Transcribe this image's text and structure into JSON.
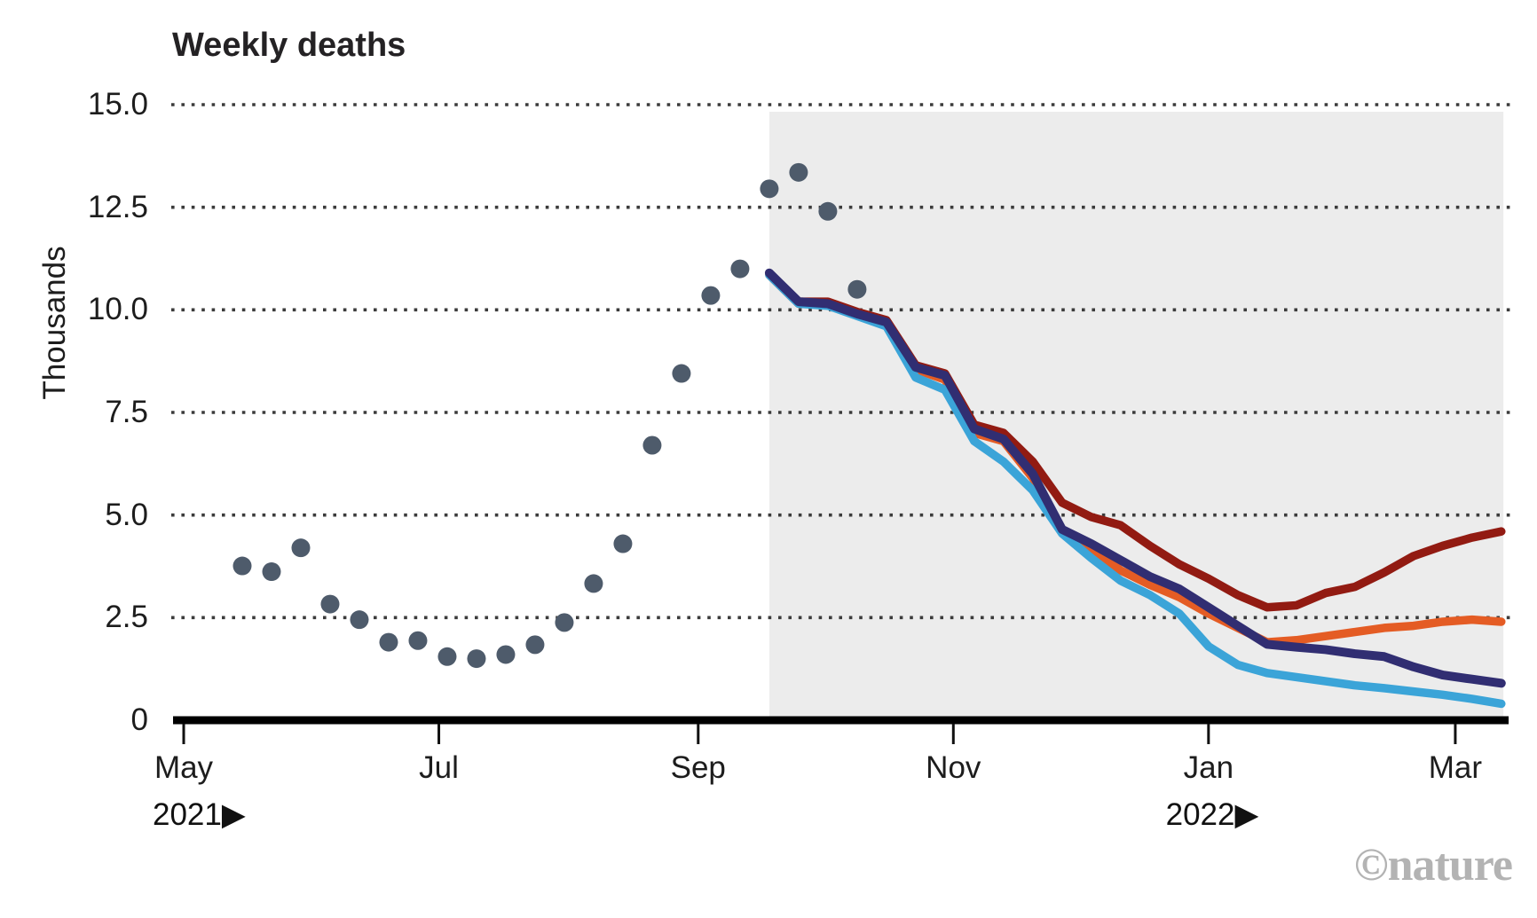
{
  "chart": {
    "title": "Weekly deaths",
    "ylabel": "Thousands",
    "credit": "©nature",
    "x_axis": {
      "month_ticks": [
        {
          "label": "May",
          "day": 0
        },
        {
          "label": "Jul",
          "day": 61
        },
        {
          "label": "Sep",
          "day": 123
        },
        {
          "label": "Nov",
          "day": 184
        },
        {
          "label": "Jan",
          "day": 245
        },
        {
          "label": "Mar",
          "day": 304
        }
      ],
      "year_labels": {
        "left": "2021▶",
        "right": "2022▶"
      }
    },
    "y_axis": {
      "ticks": [
        {
          "label": "15.0",
          "value": 15
        },
        {
          "label": "12.5",
          "value": 12.5
        },
        {
          "label": "10.0",
          "value": 10
        },
        {
          "label": "7.5",
          "value": 7.5
        },
        {
          "label": "5.0",
          "value": 5
        },
        {
          "label": "2.5",
          "value": 2.5
        },
        {
          "label": "0",
          "value": 0
        }
      ]
    },
    "colors": {
      "observed_dot": "#4e5b6b",
      "dark_red": "#921b12",
      "orange": "#e45c24",
      "light_blue": "#3ba4d8",
      "navy": "#312e72",
      "projection_band": "#ececec",
      "gridline": "#3b3b3b",
      "axis": "#000000",
      "credit": "#b3b3b3"
    }
  },
  "chart_data": {
    "type": "mixed-scatter-line",
    "title": "Weekly deaths",
    "ylabel": "Thousands",
    "ylim": [
      0,
      15
    ],
    "gridline_values": [
      2.5,
      5,
      7.5,
      10,
      12.5,
      15
    ],
    "x_unit": "days since 2021-05-01",
    "observed": {
      "name": "observed-weekly-deaths",
      "color": "#4e5b6b",
      "dates": [
        "2021-05-15",
        "2021-05-22",
        "2021-05-29",
        "2021-06-05",
        "2021-06-12",
        "2021-06-19",
        "2021-06-26",
        "2021-07-03",
        "2021-07-10",
        "2021-07-17",
        "2021-07-24",
        "2021-07-31",
        "2021-08-07",
        "2021-08-14",
        "2021-08-21",
        "2021-08-28",
        "2021-09-04",
        "2021-09-11",
        "2021-09-18",
        "2021-09-25",
        "2021-10-02",
        "2021-10-09"
      ],
      "days": [
        14,
        21,
        28,
        35,
        42,
        49,
        56,
        63,
        70,
        77,
        84,
        91,
        98,
        105,
        112,
        119,
        126,
        133,
        140,
        147,
        154,
        161
      ],
      "values": [
        3.76,
        3.62,
        4.2,
        2.83,
        2.45,
        1.9,
        1.94,
        1.55,
        1.5,
        1.6,
        1.84,
        2.38,
        3.33,
        4.3,
        6.7,
        8.45,
        10.35,
        11.0,
        12.95,
        13.35,
        12.4,
        10.5
      ]
    },
    "projections": {
      "region_start_day": 140,
      "region_end_day": 315.5,
      "dates": [
        "2021-09-18",
        "2021-09-25",
        "2021-10-02",
        "2021-10-09",
        "2021-10-16",
        "2021-10-23",
        "2021-10-30",
        "2021-11-06",
        "2021-11-13",
        "2021-11-20",
        "2021-11-27",
        "2021-12-04",
        "2021-12-11",
        "2021-12-18",
        "2021-12-25",
        "2022-01-01",
        "2022-01-08",
        "2022-01-15",
        "2022-01-22",
        "2022-01-29",
        "2022-02-05",
        "2022-02-12",
        "2022-02-19",
        "2022-02-26",
        "2022-03-05",
        "2022-03-12"
      ],
      "days": [
        140,
        147,
        154,
        161,
        168,
        175,
        182,
        189,
        196,
        203,
        210,
        217,
        224,
        231,
        238,
        245,
        252,
        259,
        266,
        273,
        280,
        287,
        294,
        301,
        308,
        315
      ],
      "series": [
        {
          "id": "dark-red",
          "color": "#921b12",
          "width": 9.5,
          "values": [
            10.9,
            10.2,
            10.2,
            9.95,
            9.75,
            8.65,
            8.45,
            7.2,
            7.0,
            6.3,
            5.3,
            4.95,
            4.75,
            4.25,
            3.8,
            3.45,
            3.05,
            2.75,
            2.8,
            3.1,
            3.25,
            3.6,
            4.0,
            4.25,
            4.45,
            4.6
          ]
        },
        {
          "id": "orange",
          "color": "#e45c24",
          "width": 9.5,
          "values": [
            10.85,
            10.15,
            10.15,
            9.9,
            9.65,
            8.55,
            8.3,
            7.0,
            6.8,
            5.9,
            4.6,
            4.2,
            3.65,
            3.3,
            3.0,
            2.6,
            2.25,
            1.9,
            1.95,
            2.05,
            2.15,
            2.25,
            2.3,
            2.4,
            2.45,
            2.4
          ]
        },
        {
          "id": "light-blue",
          "color": "#3ba4d8",
          "width": 9.5,
          "values": [
            10.85,
            10.15,
            10.1,
            9.85,
            9.6,
            8.35,
            8.05,
            6.8,
            6.3,
            5.6,
            4.55,
            3.95,
            3.4,
            3.05,
            2.6,
            1.8,
            1.35,
            1.15,
            1.05,
            0.95,
            0.85,
            0.78,
            0.7,
            0.62,
            0.52,
            0.4
          ]
        },
        {
          "id": "navy",
          "color": "#312e72",
          "width": 10,
          "values": [
            10.9,
            10.2,
            10.15,
            9.9,
            9.7,
            8.6,
            8.4,
            7.1,
            6.85,
            6.0,
            4.65,
            4.3,
            3.9,
            3.5,
            3.2,
            2.75,
            2.3,
            1.85,
            1.78,
            1.72,
            1.62,
            1.55,
            1.3,
            1.1,
            1.0,
            0.9
          ]
        }
      ]
    }
  }
}
